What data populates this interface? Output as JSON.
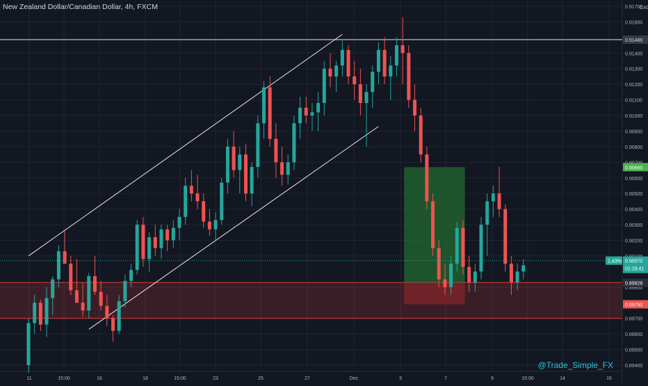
{
  "header": {
    "title": "New Zealand Dollar/Canadian Dollar, 4h, FXCM",
    "currency": "CAD"
  },
  "watermark": "@Trade_Simple_FX",
  "colors": {
    "background": "#131722",
    "grid": "#1f2433",
    "text": "#b2b5be",
    "up": "#26a69a",
    "down": "#ef5350",
    "doji": "#9e9e9e",
    "trendline": "#e8e8e8",
    "profit_zone": "rgba(38,135,52,0.55)",
    "loss_zone": "rgba(178,40,40,0.45)",
    "support_zone": "rgba(200,60,60,0.22)",
    "support_border": "#e53935",
    "last_price_bg": "#26a69a",
    "target_bg": "#4caf50",
    "stop_bg": "#ef5350",
    "resistance_bg": "#363a45"
  },
  "chart_data": {
    "type": "candlestick",
    "title": "New Zealand Dollar/Canadian Dollar, 4h, FXCM",
    "y_unit": "CAD",
    "ylim": [
      0.8936,
      0.9174
    ],
    "y_ticks": [
      "0.91700",
      "0.91600",
      "0.91400",
      "0.91300",
      "0.91200",
      "0.91100",
      "0.91000",
      "0.90900",
      "0.90800",
      "0.90700",
      "0.90600",
      "0.90500",
      "0.90400",
      "0.90300",
      "0.90200",
      "0.90100",
      "0.89900",
      "0.89700",
      "0.89600",
      "0.89500",
      "0.89400"
    ],
    "x_ticks": [
      "11",
      "15:00",
      "16",
      "18",
      "15:00",
      "23",
      "25",
      "27",
      "Dec",
      "3",
      "7",
      "9",
      "15:00",
      "14",
      "16"
    ],
    "grid": true,
    "candles": [
      [
        0.894,
        0.897,
        0.8935,
        0.8967
      ],
      [
        0.8967,
        0.8985,
        0.896,
        0.898
      ],
      [
        0.898,
        0.8982,
        0.8962,
        0.8966
      ],
      [
        0.8966,
        0.899,
        0.8958,
        0.8983
      ],
      [
        0.8983,
        0.8997,
        0.8972,
        0.8995
      ],
      [
        0.8995,
        0.9017,
        0.899,
        0.9013
      ],
      [
        0.9013,
        0.9026,
        0.9005,
        0.9005
      ],
      [
        0.9005,
        0.901,
        0.8985,
        0.8988
      ],
      [
        0.8988,
        0.9008,
        0.898,
        0.898
      ],
      [
        0.898,
        0.8993,
        0.8971,
        0.8975
      ],
      [
        0.8975,
        0.8999,
        0.897,
        0.8997
      ],
      [
        0.8997,
        0.901,
        0.8985,
        0.8987
      ],
      [
        0.8987,
        0.8994,
        0.8975,
        0.8978
      ],
      [
        0.8978,
        0.8985,
        0.8965,
        0.897
      ],
      [
        0.897,
        0.8972,
        0.8955,
        0.8962
      ],
      [
        0.8962,
        0.8985,
        0.896,
        0.8981
      ],
      [
        0.8981,
        0.8998,
        0.8977,
        0.8994
      ],
      [
        0.8994,
        0.9005,
        0.899,
        0.9001
      ],
      [
        0.9001,
        0.9033,
        0.8998,
        0.903
      ],
      [
        0.903,
        0.9035,
        0.9003,
        0.9008
      ],
      [
        0.9008,
        0.9025,
        0.9,
        0.9022
      ],
      [
        0.9022,
        0.903,
        0.901,
        0.9015
      ],
      [
        0.9015,
        0.903,
        0.9008,
        0.9027
      ],
      [
        0.9027,
        0.903,
        0.9013,
        0.902
      ],
      [
        0.902,
        0.9033,
        0.9015,
        0.9028
      ],
      [
        0.9028,
        0.904,
        0.902,
        0.9035
      ],
      [
        0.9035,
        0.906,
        0.903,
        0.9055
      ],
      [
        0.9055,
        0.9065,
        0.9045,
        0.905
      ],
      [
        0.905,
        0.9062,
        0.904,
        0.9045
      ],
      [
        0.9045,
        0.905,
        0.9028,
        0.9032
      ],
      [
        0.9032,
        0.904,
        0.9023,
        0.9027
      ],
      [
        0.9027,
        0.9038,
        0.902,
        0.9033
      ],
      [
        0.9033,
        0.906,
        0.903,
        0.9057
      ],
      [
        0.9057,
        0.9085,
        0.905,
        0.908
      ],
      [
        0.908,
        0.909,
        0.906,
        0.9065
      ],
      [
        0.9065,
        0.908,
        0.905,
        0.9075
      ],
      [
        0.9075,
        0.9082,
        0.9045,
        0.905
      ],
      [
        0.905,
        0.907,
        0.9042,
        0.9067
      ],
      [
        0.9067,
        0.91,
        0.906,
        0.9095
      ],
      [
        0.9095,
        0.9122,
        0.9085,
        0.9118
      ],
      [
        0.9118,
        0.9125,
        0.908,
        0.9085
      ],
      [
        0.9085,
        0.9095,
        0.906,
        0.907
      ],
      [
        0.907,
        0.908,
        0.9055,
        0.9062
      ],
      [
        0.9062,
        0.9075,
        0.9056,
        0.907
      ],
      [
        0.907,
        0.91,
        0.9065,
        0.9095
      ],
      [
        0.9095,
        0.9112,
        0.9085,
        0.9105
      ],
      [
        0.9105,
        0.9112,
        0.9095,
        0.91
      ],
      [
        0.91,
        0.9108,
        0.909,
        0.9102
      ],
      [
        0.9102,
        0.9115,
        0.909,
        0.9108
      ],
      [
        0.9108,
        0.9135,
        0.91,
        0.913
      ],
      [
        0.913,
        0.914,
        0.9118,
        0.9125
      ],
      [
        0.9125,
        0.9135,
        0.9115,
        0.9132
      ],
      [
        0.9132,
        0.9148,
        0.9125,
        0.9142
      ],
      [
        0.9142,
        0.9145,
        0.912,
        0.9125
      ],
      [
        0.9125,
        0.9135,
        0.911,
        0.912
      ],
      [
        0.912,
        0.913,
        0.91,
        0.9108
      ],
      [
        0.9108,
        0.912,
        0.908,
        0.9115
      ],
      [
        0.9115,
        0.9132,
        0.9105,
        0.9128
      ],
      [
        0.9128,
        0.9147,
        0.912,
        0.9142
      ],
      [
        0.9142,
        0.915,
        0.912,
        0.9125
      ],
      [
        0.9125,
        0.9138,
        0.911,
        0.9132
      ],
      [
        0.9132,
        0.915,
        0.9125,
        0.9145
      ],
      [
        0.9145,
        0.9163,
        0.912,
        0.914
      ],
      [
        0.914,
        0.9145,
        0.9105,
        0.911
      ],
      [
        0.911,
        0.912,
        0.909,
        0.91
      ],
      [
        0.91,
        0.9105,
        0.907,
        0.9075
      ],
      [
        0.9075,
        0.908,
        0.904,
        0.9045
      ],
      [
        0.9045,
        0.905,
        0.901,
        0.9015
      ],
      [
        0.9015,
        0.902,
        0.899,
        0.8995
      ],
      [
        0.8995,
        0.9005,
        0.8985,
        0.899
      ],
      [
        0.899,
        0.901,
        0.8985,
        0.9005
      ],
      [
        0.9005,
        0.9032,
        0.9,
        0.9028
      ],
      [
        0.9028,
        0.9033,
        0.8998,
        0.9003
      ],
      [
        0.9003,
        0.901,
        0.8987,
        0.8993
      ],
      [
        0.8993,
        0.9005,
        0.8987,
        0.9
      ],
      [
        0.9,
        0.9035,
        0.8995,
        0.903
      ],
      [
        0.903,
        0.905,
        0.901,
        0.9045
      ],
      [
        0.9045,
        0.9055,
        0.9035,
        0.905
      ],
      [
        0.905,
        0.9067,
        0.9035,
        0.904
      ],
      [
        0.904,
        0.9043,
        0.9,
        0.9005
      ],
      [
        0.9005,
        0.901,
        0.8985,
        0.8993
      ],
      [
        0.8993,
        0.9005,
        0.8988,
        0.9
      ],
      [
        0.9,
        0.9008,
        0.8995,
        0.9004
      ]
    ],
    "annotations": {
      "channel_upper": [
        [
          0,
          0.901
        ],
        [
          52,
          0.9152
        ]
      ],
      "channel_lower": [
        [
          10,
          0.8963
        ],
        [
          58,
          0.9093
        ]
      ],
      "resistance_level": 0.91486,
      "support_zone": [
        0.897,
        0.8993
      ],
      "position": {
        "start": 62,
        "end": 70,
        "entry": 0.89928,
        "target": 0.90669,
        "stop": 0.8979
      }
    },
    "price_labels": {
      "resistance": "0.91486",
      "target": "0.90669",
      "last_price": "0.90070",
      "last_change": "1.43%",
      "countdown": "01:29:41",
      "entry": "0.89928",
      "stop": "0.89790"
    }
  }
}
